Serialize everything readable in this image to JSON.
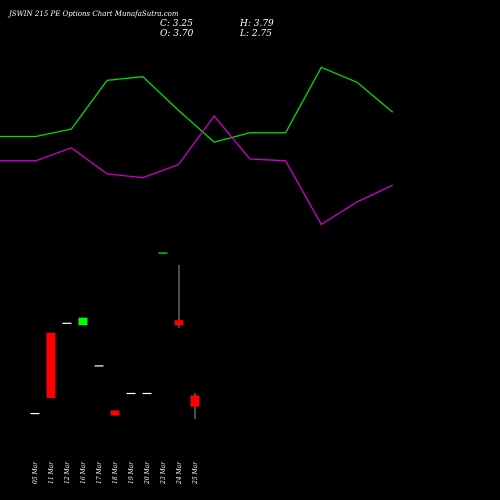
{
  "title": "JSWIN 215 PE Options  Chart MunafaSutra.com",
  "ohlc": {
    "close_label": "C: 3.25",
    "high_label": "H: 3.79",
    "open_label": "O: 3.70",
    "low_label": "L: 2.75"
  },
  "colors": {
    "background": "#000000",
    "up": "#00ff00",
    "down": "#ff0000",
    "neutral": "#ffffff",
    "line_green": "#00dd00",
    "line_magenta": "#cc00cc",
    "text": "#ffffff"
  },
  "chart_data": {
    "type": "candlestick",
    "price_range": [
      2.4,
      9.5
    ],
    "candles": [
      {
        "date": "05 Mar",
        "open": 3.0,
        "high": 3.0,
        "low": 3.0,
        "close": 3.0,
        "color": "neutral"
      },
      {
        "date": "11 Mar",
        "open": 6.2,
        "high": 6.2,
        "low": 3.6,
        "close": 3.6,
        "color": "down"
      },
      {
        "date": "12 Mar",
        "open": 6.6,
        "high": 6.6,
        "low": 6.6,
        "close": 6.6,
        "color": "neutral"
      },
      {
        "date": "16 Mar",
        "open": 6.5,
        "high": 6.8,
        "low": 6.5,
        "close": 6.8,
        "color": "up"
      },
      {
        "date": "17 Mar",
        "open": 4.9,
        "high": 4.9,
        "low": 4.9,
        "close": 4.9,
        "color": "neutral"
      },
      {
        "date": "18 Mar",
        "open": 3.1,
        "high": 3.1,
        "low": 2.9,
        "close": 2.9,
        "color": "down"
      },
      {
        "date": "19 Mar",
        "open": 3.8,
        "high": 3.8,
        "low": 3.8,
        "close": 3.8,
        "color": "neutral"
      },
      {
        "date": "20 Mar",
        "open": 3.8,
        "high": 3.8,
        "low": 3.8,
        "close": 3.8,
        "color": "neutral"
      },
      {
        "date": "23 Mar",
        "open": 9.4,
        "high": 9.4,
        "low": 9.4,
        "close": 9.4,
        "color": "up"
      },
      {
        "date": "24 Mar",
        "open": 6.7,
        "high": 8.9,
        "low": 6.4,
        "close": 6.5,
        "color": "down"
      },
      {
        "date": "25 Mar",
        "open": 3.7,
        "high": 3.79,
        "low": 2.75,
        "close": 3.25,
        "color": "down"
      }
    ],
    "lines": [
      {
        "color": "line_green",
        "values": [
          58,
          58,
          62,
          88,
          90,
          72,
          55,
          60,
          60,
          95,
          87,
          71
        ]
      },
      {
        "color": "line_magenta",
        "values": [
          45,
          45,
          52,
          38,
          36,
          43,
          69,
          46,
          45,
          11,
          23,
          32
        ]
      }
    ],
    "line_range": [
      0,
      100
    ]
  }
}
